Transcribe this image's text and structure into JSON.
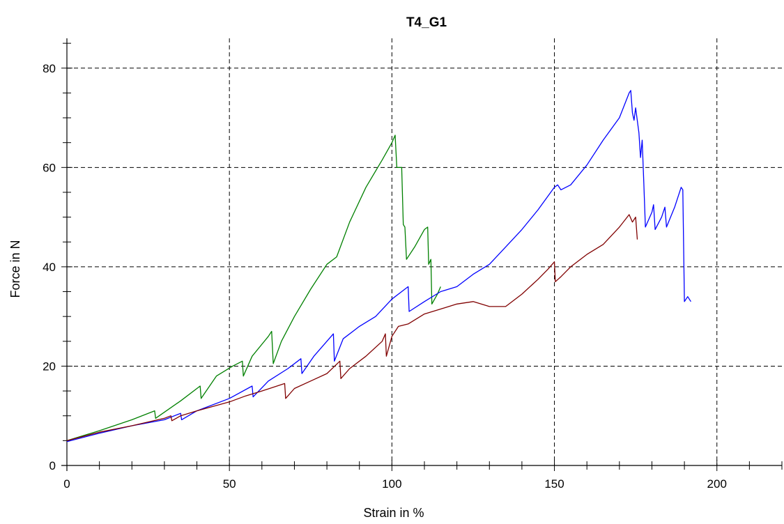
{
  "chart_data": {
    "type": "line",
    "title": "T4_G1",
    "xlabel": "Strain in %",
    "ylabel": "Force in N",
    "xlim": [
      0,
      220
    ],
    "ylim": [
      0,
      86
    ],
    "xticks": [
      0,
      50,
      100,
      150,
      200
    ],
    "yticks": [
      0,
      20,
      40,
      60,
      80
    ],
    "xtick_labels": [
      "0",
      "50",
      "100",
      "150",
      "200"
    ],
    "ytick_labels": [
      "0",
      "20",
      "40",
      "60",
      "80"
    ],
    "grid": true,
    "legend": "none",
    "series": [
      {
        "color": "#008000",
        "points": [
          [
            0,
            5
          ],
          [
            10,
            7
          ],
          [
            20,
            9.2
          ],
          [
            27,
            11
          ],
          [
            27.3,
            9.5
          ],
          [
            35,
            13
          ],
          [
            41,
            16
          ],
          [
            41.3,
            13.5
          ],
          [
            46,
            18
          ],
          [
            51,
            20
          ],
          [
            54,
            21
          ],
          [
            54.3,
            18
          ],
          [
            57,
            22
          ],
          [
            62,
            26
          ],
          [
            63,
            27
          ],
          [
            63.5,
            20.5
          ],
          [
            66,
            25
          ],
          [
            70,
            30
          ],
          [
            75,
            35.5
          ],
          [
            80,
            40.5
          ],
          [
            83,
            42
          ],
          [
            87,
            49
          ],
          [
            92,
            56
          ],
          [
            97,
            61.5
          ],
          [
            100,
            65
          ],
          [
            101,
            66.5
          ],
          [
            101.5,
            60
          ],
          [
            103,
            60
          ],
          [
            103.5,
            48.5
          ],
          [
            104,
            48
          ],
          [
            104.5,
            41.5
          ],
          [
            107,
            44
          ],
          [
            110,
            47.5
          ],
          [
            111,
            48
          ],
          [
            111.3,
            40.5
          ],
          [
            112,
            41.5
          ],
          [
            112.3,
            32.5
          ],
          [
            114,
            34.5
          ],
          [
            115,
            36
          ]
        ]
      },
      {
        "color": "#0000ff",
        "points": [
          [
            0,
            4.8
          ],
          [
            10,
            6.5
          ],
          [
            20,
            8
          ],
          [
            30,
            9.2
          ],
          [
            35,
            10.5
          ],
          [
            35.3,
            9.2
          ],
          [
            40,
            11
          ],
          [
            50,
            13.5
          ],
          [
            57,
            16
          ],
          [
            57.3,
            13.8
          ],
          [
            62,
            17
          ],
          [
            68,
            19.5
          ],
          [
            72,
            21.5
          ],
          [
            72.3,
            18.5
          ],
          [
            76,
            22
          ],
          [
            82,
            26.5
          ],
          [
            82.3,
            21
          ],
          [
            85,
            25.5
          ],
          [
            90,
            28
          ],
          [
            95,
            30
          ],
          [
            100,
            33.5
          ],
          [
            103,
            35
          ],
          [
            105,
            36
          ],
          [
            105.3,
            31
          ],
          [
            110,
            33
          ],
          [
            115,
            35
          ],
          [
            120,
            36
          ],
          [
            125,
            38.5
          ],
          [
            130,
            40.5
          ],
          [
            135,
            44
          ],
          [
            140,
            47.5
          ],
          [
            145,
            51.5
          ],
          [
            150,
            56
          ],
          [
            151,
            56.5
          ],
          [
            152,
            55.5
          ],
          [
            155,
            56.5
          ],
          [
            160,
            60.5
          ],
          [
            165,
            65.5
          ],
          [
            170,
            70
          ],
          [
            173,
            75
          ],
          [
            173.5,
            75.5
          ],
          [
            174,
            71
          ],
          [
            174.5,
            69.5
          ],
          [
            175,
            72
          ],
          [
            176,
            67
          ],
          [
            176.5,
            62
          ],
          [
            177,
            65.5
          ],
          [
            177.5,
            57
          ],
          [
            178,
            48
          ],
          [
            180,
            51
          ],
          [
            180.5,
            52.5
          ],
          [
            181,
            47.5
          ],
          [
            183,
            50
          ],
          [
            184,
            52
          ],
          [
            184.5,
            48
          ],
          [
            187,
            52
          ],
          [
            189,
            56
          ],
          [
            189.5,
            55.5
          ],
          [
            190,
            33
          ],
          [
            191,
            34
          ],
          [
            192,
            33
          ]
        ]
      },
      {
        "color": "#800000",
        "points": [
          [
            0,
            5
          ],
          [
            10,
            6.7
          ],
          [
            20,
            8
          ],
          [
            30,
            9.5
          ],
          [
            32,
            10
          ],
          [
            32.3,
            9
          ],
          [
            35,
            10
          ],
          [
            40,
            11
          ],
          [
            50,
            12.8
          ],
          [
            55,
            14
          ],
          [
            60,
            15
          ],
          [
            67,
            16.5
          ],
          [
            67.3,
            13.5
          ],
          [
            70,
            15.5
          ],
          [
            75,
            17
          ],
          [
            80,
            18.5
          ],
          [
            84,
            21
          ],
          [
            84.3,
            17.5
          ],
          [
            87,
            19.5
          ],
          [
            92,
            22
          ],
          [
            97,
            25
          ],
          [
            98,
            26.5
          ],
          [
            98.3,
            22
          ],
          [
            100,
            26
          ],
          [
            102,
            28
          ],
          [
            105,
            28.5
          ],
          [
            110,
            30.5
          ],
          [
            115,
            31.5
          ],
          [
            120,
            32.5
          ],
          [
            125,
            33
          ],
          [
            130,
            32
          ],
          [
            135,
            32
          ],
          [
            140,
            34.5
          ],
          [
            145,
            37.5
          ],
          [
            148,
            39.5
          ],
          [
            150,
            41
          ],
          [
            150.3,
            37
          ],
          [
            152,
            38
          ],
          [
            155,
            40
          ],
          [
            160,
            42.5
          ],
          [
            165,
            44.5
          ],
          [
            170,
            48
          ],
          [
            173,
            50.5
          ],
          [
            174,
            49
          ],
          [
            175,
            50
          ],
          [
            175.5,
            45.5
          ]
        ]
      }
    ]
  }
}
